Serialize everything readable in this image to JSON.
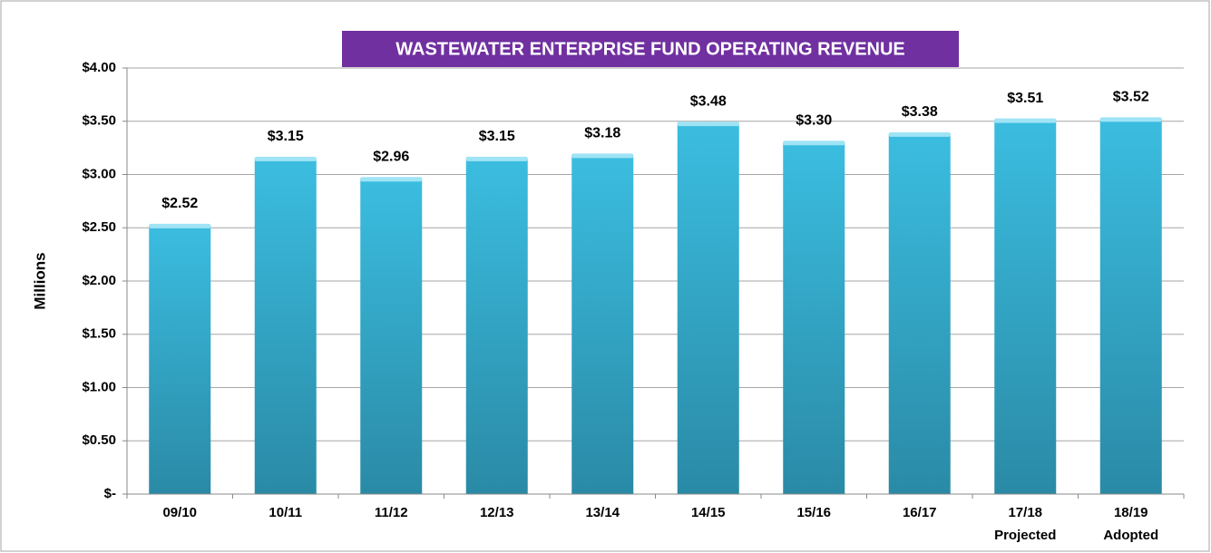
{
  "chart_data": {
    "type": "bar",
    "title": "WASTEWATER ENTERPRISE FUND OPERATING REVENUE",
    "y_label": "Millions",
    "categories": [
      "09/10",
      "10/11",
      "11/12",
      "12/13",
      "13/14",
      "14/15",
      "15/16",
      "16/17",
      "17/18\nProjected",
      "18/19\nAdopted"
    ],
    "values": [
      2.52,
      3.15,
      2.96,
      3.15,
      3.18,
      3.48,
      3.3,
      3.38,
      3.51,
      3.52
    ],
    "value_labels": [
      "$2.52",
      "$3.15",
      "$2.96",
      "$3.15",
      "$3.18",
      "$3.48",
      "$3.30",
      "$3.38",
      "$3.51",
      "$3.52"
    ],
    "color": "#3bbde0",
    "ylim": [
      0,
      4
    ],
    "yticks": [
      {
        "value": 0,
        "label": "$-"
      },
      {
        "value": 0.5,
        "label": "$0.50"
      },
      {
        "value": 1,
        "label": "$1.00"
      },
      {
        "value": 1.5,
        "label": "$1.50"
      },
      {
        "value": 2,
        "label": "$2.00"
      },
      {
        "value": 2.5,
        "label": "$2.50"
      },
      {
        "value": 3,
        "label": "$3.00"
      },
      {
        "value": 3.5,
        "label": "$3.50"
      },
      {
        "value": 4,
        "label": "$4.00"
      }
    ],
    "grid": true
  }
}
